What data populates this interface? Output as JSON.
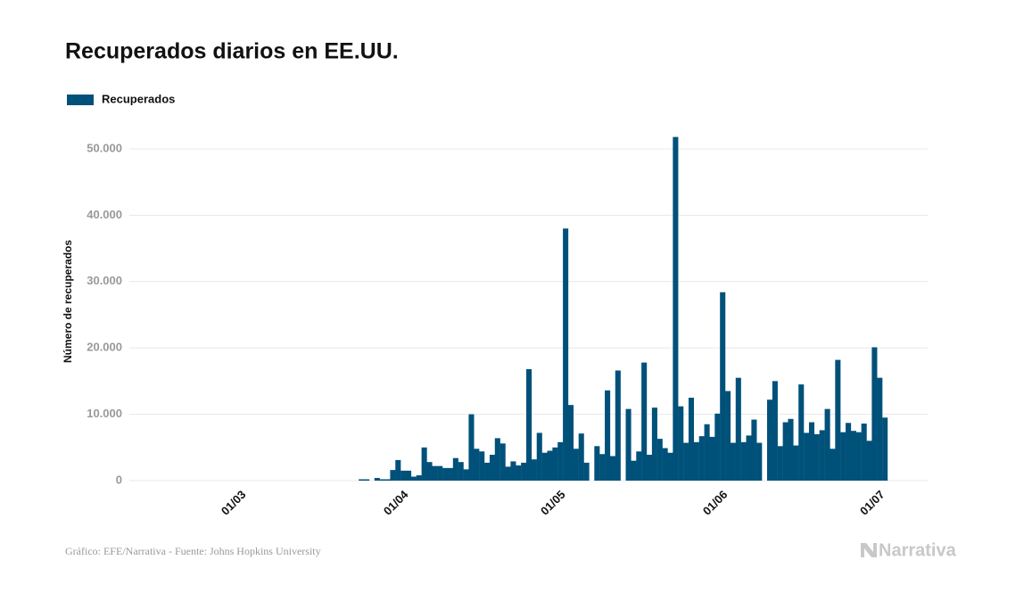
{
  "chart_data": {
    "type": "bar",
    "title": "Recuperados diarios en EE.UU.",
    "y_label": "Número de recuperados",
    "source": "Gráfico: EFE/Narrativa - Fuente: Johns Hopkins University",
    "logo": "Narrativa",
    "legend_position": "top-left",
    "grid": true,
    "series": [
      {
        "name": "Recuperados",
        "color": "#00517a",
        "values": [
          0,
          0,
          0,
          0,
          0,
          0,
          0,
          0,
          0,
          0,
          0,
          0,
          0,
          0,
          0,
          0,
          0,
          0,
          0,
          0,
          0,
          0,
          0,
          0,
          0,
          0,
          0,
          0,
          0,
          0,
          0,
          0,
          0,
          0,
          0,
          0,
          0,
          200,
          200,
          0,
          400,
          200,
          200,
          1600,
          3100,
          1500,
          1500,
          600,
          800,
          5000,
          2800,
          2200,
          2200,
          1900,
          1900,
          3400,
          2800,
          1700,
          10000,
          4800,
          4400,
          2700,
          3900,
          6400,
          5600,
          2100,
          2900,
          2300,
          2700,
          16800,
          3200,
          7200,
          4200,
          4500,
          5000,
          5800,
          38000,
          11400,
          4800,
          7100,
          2700,
          0,
          5200,
          4000,
          13600,
          3700,
          16600,
          0,
          10800,
          3000,
          4400,
          17800,
          3900,
          11000,
          6300,
          4900,
          4200,
          51800,
          11200,
          5700,
          12500,
          5800,
          6700,
          8500,
          6600,
          10100,
          28400,
          13500,
          5700,
          15500,
          5800,
          6800,
          9200,
          5700,
          0,
          12200,
          15000,
          5200,
          8800,
          9300,
          5300,
          14500,
          7200,
          8800,
          7000,
          7600,
          10800,
          4800,
          18200,
          7300,
          8700,
          7500,
          7300,
          8600,
          6000,
          20100,
          15500,
          9500
        ]
      }
    ],
    "categories": [
      null,
      null,
      null,
      null,
      null,
      null,
      null,
      null,
      null,
      null,
      null,
      null,
      null,
      null,
      null,
      "01/03",
      null,
      null,
      null,
      null,
      null,
      null,
      null,
      null,
      null,
      null,
      null,
      null,
      null,
      null,
      null,
      null,
      null,
      null,
      null,
      null,
      null,
      null,
      null,
      null,
      null,
      null,
      null,
      null,
      null,
      null,
      "01/04",
      null,
      null,
      null,
      null,
      null,
      null,
      null,
      null,
      null,
      null,
      null,
      null,
      null,
      null,
      null,
      null,
      null,
      null,
      null,
      null,
      null,
      null,
      null,
      null,
      null,
      null,
      null,
      null,
      null,
      "01/05",
      null,
      null,
      null,
      null,
      null,
      null,
      null,
      null,
      null,
      null,
      null,
      null,
      null,
      null,
      null,
      null,
      null,
      null,
      null,
      null,
      null,
      null,
      null,
      null,
      null,
      null,
      null,
      null,
      null,
      null,
      "01/06",
      null,
      null,
      null,
      null,
      null,
      null,
      null,
      null,
      null,
      null,
      null,
      null,
      null,
      null,
      null,
      null,
      null,
      null,
      null,
      null,
      null,
      null,
      null,
      null,
      null,
      null,
      null,
      null,
      null,
      "01/07"
    ],
    "ylim": [
      0,
      54000
    ],
    "yticks": [
      0,
      {
        "value": 10000,
        "label": "10.000"
      },
      {
        "value": 20000,
        "label": "20.000"
      },
      {
        "value": 30000,
        "label": "30.000"
      },
      {
        "value": 40000,
        "label": "40.000"
      },
      {
        "value": 50000,
        "label": "50.000"
      }
    ]
  }
}
